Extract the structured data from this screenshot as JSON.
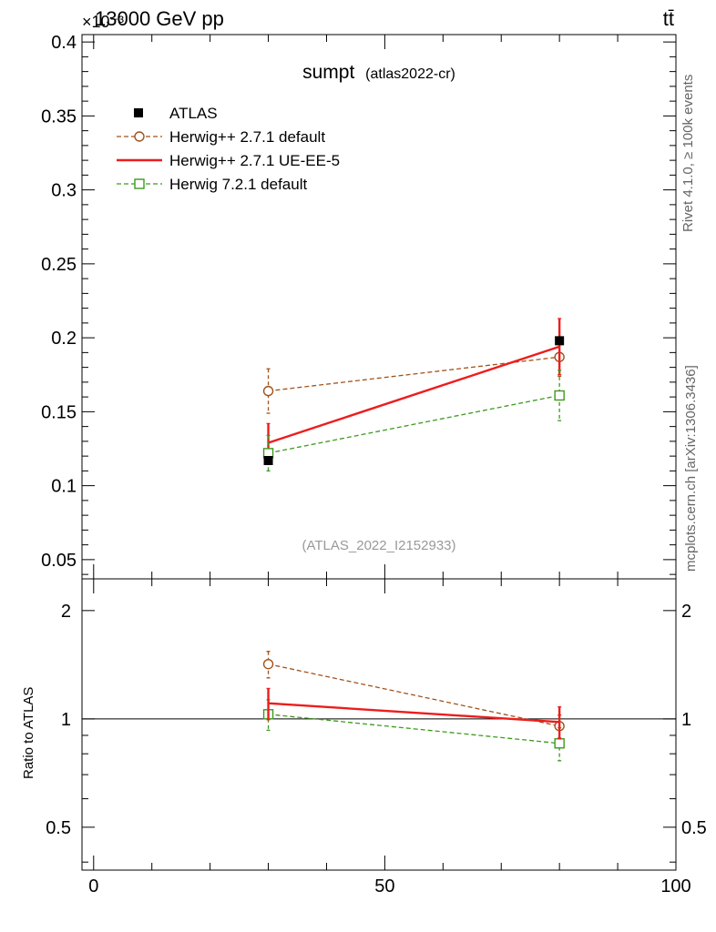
{
  "header": {
    "left_label": "13000 GeV pp",
    "right_label": "tt̄",
    "exponent_label": "×10⁻³"
  },
  "side_labels": {
    "rivet": "Rivet 4.1.0, ≥ 100k events",
    "mcplots": "mcplots.cern.ch [arXiv:1306.3436]"
  },
  "chart_data": {
    "type": "line",
    "title": "sumpt",
    "subtitle": "(atlas2022-cr)",
    "analysis_label": "(ATLAS_2022_I2152933)",
    "xlabel": "",
    "ylabel": "",
    "ratio_ylabel": "Ratio to ATLAS",
    "xlim": [
      -2,
      100
    ],
    "ylim": [
      0.037,
      0.405
    ],
    "ratio_ylim": [
      0.38,
      2.45
    ],
    "x_ticks": [
      0,
      50,
      100
    ],
    "x_tick_labels": [
      "0",
      "50",
      "100"
    ],
    "y_ticks": [
      0.05,
      0.1,
      0.15,
      0.2,
      0.25,
      0.3,
      0.35,
      0.4
    ],
    "y_tick_labels": [
      "0.05",
      "0.1",
      "0.15",
      "0.2",
      "0.25",
      "0.3",
      "0.35",
      "0.4"
    ],
    "ratio_ticks": [
      0.5,
      1,
      2
    ],
    "ratio_tick_labels": [
      "0.5",
      "1",
      "2"
    ],
    "legend_position": "top-left",
    "data": {
      "name": "ATLAS",
      "color": "#000000",
      "x": [
        30,
        80
      ],
      "y": [
        0.117,
        0.198
      ]
    },
    "series": [
      {
        "name": "Herwig++ 2.7.1 default",
        "color": "#a0521a",
        "marker": "circle",
        "dashed": true,
        "x": [
          30,
          80
        ],
        "y": [
          0.164,
          0.187
        ],
        "err": [
          0.015,
          0.013
        ],
        "ratio": [
          1.42,
          0.955
        ],
        "ratio_err": [
          0.12,
          0.07
        ]
      },
      {
        "name": "Herwig++ 2.7.1 UE-EE-5",
        "color": "#ee1c1c",
        "marker": "none",
        "dashed": false,
        "x": [
          30,
          80
        ],
        "y": [
          0.129,
          0.194
        ],
        "err": [
          0.013,
          0.019
        ],
        "ratio": [
          1.105,
          0.98
        ],
        "ratio_err": [
          0.11,
          0.1
        ]
      },
      {
        "name": "Herwig 7.2.1 default",
        "color": "#3c9a1e",
        "marker": "square",
        "dashed": true,
        "x": [
          30,
          80
        ],
        "y": [
          0.122,
          0.161
        ],
        "err": [
          0.012,
          0.017
        ],
        "ratio": [
          1.03,
          0.855
        ],
        "ratio_err": [
          0.1,
          0.09
        ]
      }
    ]
  }
}
